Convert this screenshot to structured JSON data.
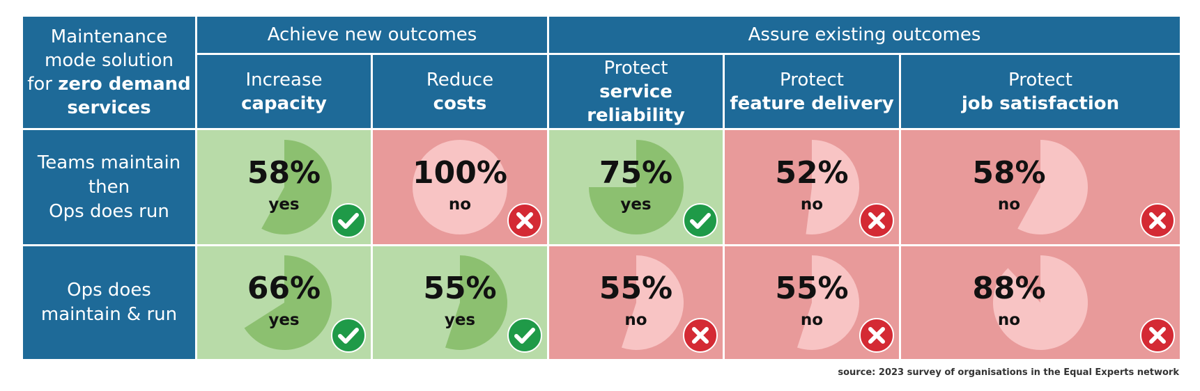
{
  "corner": {
    "line1": "Maintenance",
    "line2": "mode solution",
    "line3_prefix": "for ",
    "line3_bold": "zero demand",
    "line4": "services"
  },
  "groups": [
    {
      "label": "Achieve new outcomes"
    },
    {
      "label": "Assure existing outcomes"
    }
  ],
  "columns": [
    {
      "light": "Increase",
      "bold": "capacity"
    },
    {
      "light": "Reduce",
      "bold": "costs"
    },
    {
      "light": "Protect",
      "bold": "service reliability"
    },
    {
      "light": "Protect",
      "bold": "feature delivery"
    },
    {
      "light": "Protect",
      "bold": "job satisfaction"
    }
  ],
  "rows": [
    {
      "lines": [
        "Teams maintain",
        "then",
        "Ops does run"
      ]
    },
    {
      "lines": [
        "Ops does",
        "maintain & run"
      ]
    }
  ],
  "chart_data": {
    "type": "table",
    "categories": [
      "Increase capacity",
      "Reduce costs",
      "Protect service reliability",
      "Protect feature delivery",
      "Protect job satisfaction"
    ],
    "series": [
      {
        "name": "Teams maintain then Ops does run",
        "values": [
          58,
          100,
          75,
          52,
          58
        ],
        "answers": [
          "yes",
          "no",
          "yes",
          "no",
          "no"
        ],
        "labels": [
          "58%",
          "100%",
          "75%",
          "52%",
          "58%"
        ]
      },
      {
        "name": "Ops does maintain & run",
        "values": [
          66,
          55,
          55,
          55,
          88
        ],
        "answers": [
          "yes",
          "yes",
          "no",
          "no",
          "no"
        ],
        "labels": [
          "66%",
          "55%",
          "55%",
          "55%",
          "88%"
        ]
      }
    ],
    "unit": "%"
  },
  "colors": {
    "header": "#1e6a98",
    "yes_bg": "#b8dba8",
    "yes_pie": "#8cc070",
    "no_bg": "#e89a9a",
    "no_pie": "#f8c4c4",
    "yes_badge": "#1f9a48",
    "no_badge": "#d42a34"
  },
  "icons": {
    "yes": "check-circle-icon",
    "no": "cross-circle-icon"
  },
  "source": "source: 2023 survey of organisations in the Equal Experts network"
}
